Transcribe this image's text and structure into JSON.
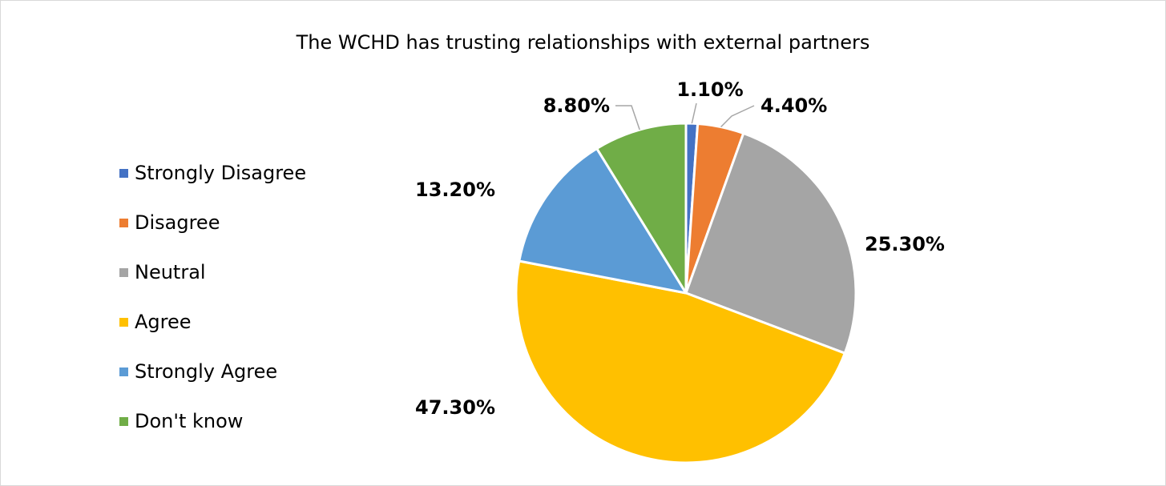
{
  "chart_data": {
    "type": "pie",
    "title": "The WCHD has trusting relationships with external partners",
    "legend_position": "left",
    "categories": [
      "Strongly Disagree",
      "Disagree",
      "Neutral",
      "Agree",
      "Strongly Agree",
      "Don't know"
    ],
    "values": [
      1.1,
      4.4,
      25.3,
      47.3,
      13.2,
      8.8
    ],
    "data_labels": [
      "1.10%",
      "4.40%",
      "25.30%",
      "47.30%",
      "13.20%",
      "8.80%"
    ],
    "colors": [
      "#4472c4",
      "#ed7d31",
      "#a5a5a5",
      "#ffc000",
      "#5b9bd5",
      "#70ad47"
    ]
  }
}
